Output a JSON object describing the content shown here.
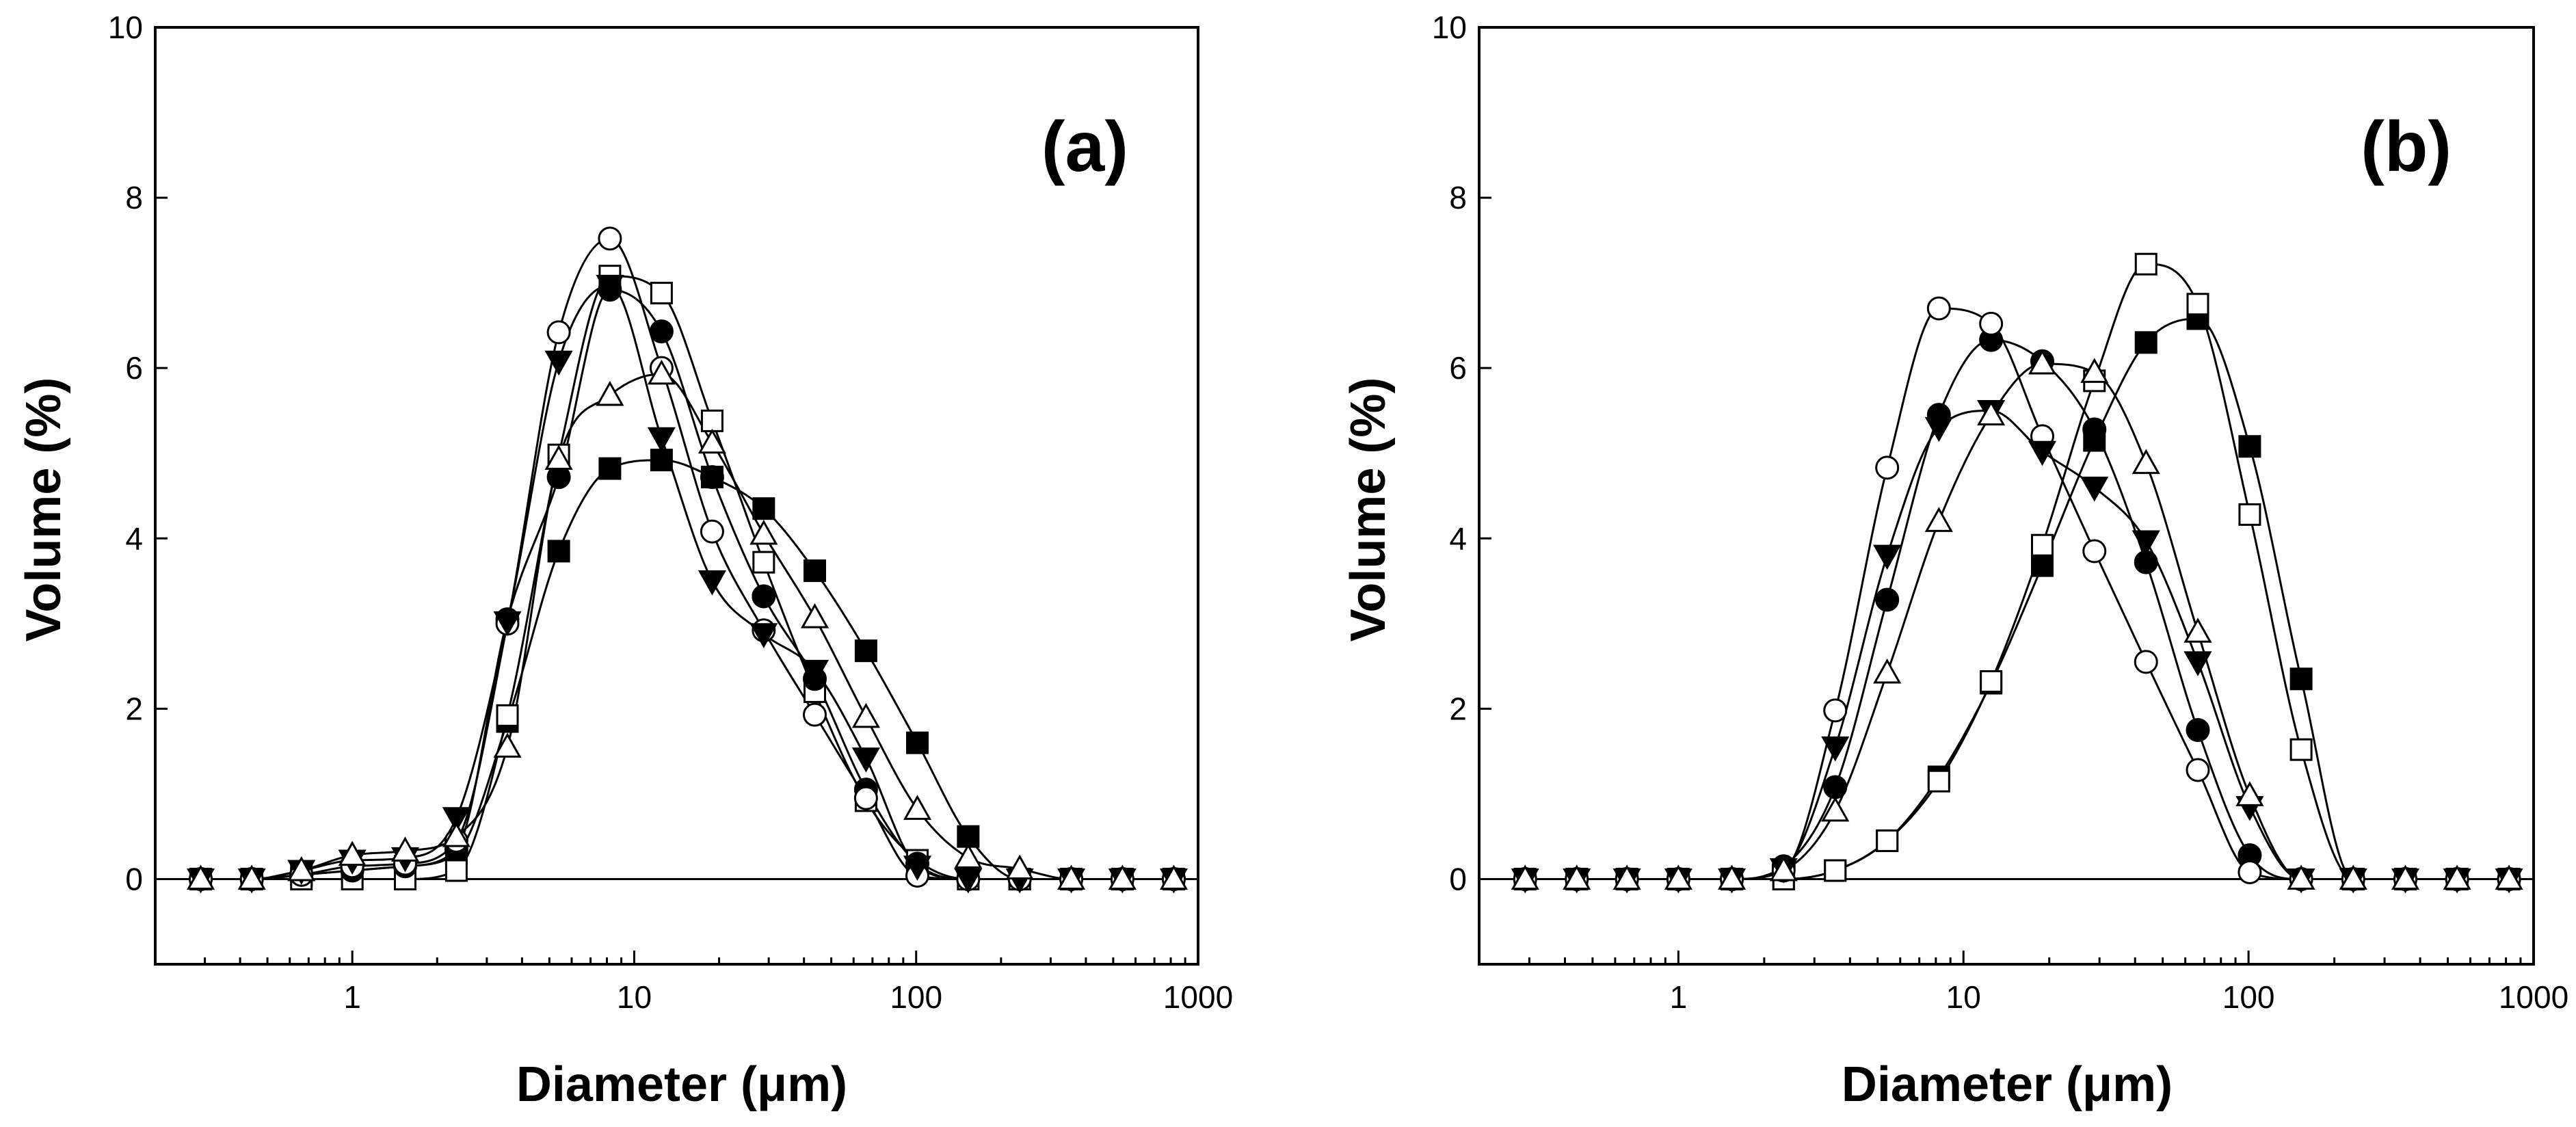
{
  "chart_data": [
    {
      "type": "line",
      "panel_label": "(a)",
      "xlabel": "Diameter (μm)",
      "ylabel": "Volume (%)",
      "xscale": "log",
      "xlim": [
        0.2,
        1000
      ],
      "ylim": [
        -1,
        10
      ],
      "xticks": [
        1,
        10,
        100,
        1000
      ],
      "xtick_labels": [
        "1",
        "10",
        "100",
        "1000"
      ],
      "yticks": [
        0,
        2,
        4,
        6,
        8,
        10
      ],
      "ytick_labels": [
        "0",
        "2",
        "4",
        "6",
        "8",
        "10"
      ],
      "x": [
        0.29,
        0.44,
        0.66,
        1.0,
        1.54,
        2.34,
        3.55,
        5.4,
        8.2,
        12.5,
        18.9,
        28.8,
        43.7,
        66.4,
        101,
        153,
        233,
        355,
        539,
        820
      ],
      "series": [
        {
          "name": "filled-square",
          "marker": "square",
          "fill": "filled",
          "values": [
            0,
            0,
            0.05,
            0.1,
            0.15,
            0.3,
            1.85,
            3.85,
            4.82,
            4.92,
            4.72,
            4.35,
            3.62,
            2.68,
            1.6,
            0.5,
            0,
            0,
            0,
            0
          ]
        },
        {
          "name": "open-square",
          "marker": "square",
          "fill": "open",
          "values": [
            0,
            0,
            0,
            0,
            0,
            0.1,
            1.92,
            4.98,
            7.08,
            6.88,
            5.38,
            3.72,
            2.2,
            0.92,
            0.22,
            0,
            0,
            0,
            0,
            0
          ]
        },
        {
          "name": "filled-circle",
          "marker": "circle",
          "fill": "filled",
          "values": [
            0,
            0,
            0.05,
            0.1,
            0.15,
            0.35,
            3.05,
            4.72,
            6.92,
            6.43,
            4.72,
            3.32,
            2.35,
            1.05,
            0.18,
            0,
            0,
            0,
            0,
            0
          ]
        },
        {
          "name": "open-circle",
          "marker": "circle",
          "fill": "open",
          "values": [
            0,
            0,
            0.05,
            0.15,
            0.18,
            0.45,
            3.0,
            6.42,
            7.52,
            6.0,
            4.08,
            2.92,
            1.93,
            0.95,
            0.04,
            0,
            0,
            0,
            0,
            0
          ]
        },
        {
          "name": "filled-triangle-down",
          "marker": "triangle-down",
          "fill": "filled",
          "values": [
            0,
            0,
            0.1,
            0.22,
            0.25,
            0.72,
            3.02,
            6.08,
            6.97,
            5.18,
            3.5,
            2.88,
            2.45,
            1.42,
            0.15,
            0,
            0,
            0,
            0,
            0
          ]
        },
        {
          "name": "open-triangle-up",
          "marker": "triangle-up",
          "fill": "open",
          "values": [
            0,
            0,
            0.1,
            0.28,
            0.33,
            0.5,
            1.55,
            4.93,
            5.68,
            5.93,
            5.12,
            4.05,
            3.07,
            1.9,
            0.82,
            0.25,
            0.12,
            0,
            0,
            0
          ]
        }
      ]
    },
    {
      "type": "line",
      "panel_label": "(b)",
      "xlabel": "Diameter (μm)",
      "ylabel": "Volume (%)",
      "xscale": "log",
      "xlim": [
        0.2,
        1000
      ],
      "ylim": [
        -1,
        10
      ],
      "xticks": [
        1,
        10,
        100,
        1000
      ],
      "xtick_labels": [
        "1",
        "10",
        "100",
        "1000"
      ],
      "yticks": [
        0,
        2,
        4,
        6,
        8,
        10
      ],
      "ytick_labels": [
        "0",
        "2",
        "4",
        "6",
        "8",
        "10"
      ],
      "x": [
        0.29,
        0.44,
        0.66,
        1.0,
        1.54,
        2.34,
        3.55,
        5.4,
        8.2,
        12.5,
        18.9,
        28.8,
        43.7,
        66.4,
        101,
        153,
        233,
        355,
        539,
        820
      ],
      "series": [
        {
          "name": "filled-square",
          "marker": "square",
          "fill": "filled",
          "values": [
            0,
            0,
            0,
            0,
            0,
            0,
            0.1,
            0.45,
            1.2,
            2.3,
            3.68,
            5.15,
            6.3,
            6.58,
            5.08,
            2.35,
            0,
            0,
            0,
            0
          ]
        },
        {
          "name": "open-square",
          "marker": "square",
          "fill": "open",
          "values": [
            0,
            0,
            0,
            0,
            0,
            0,
            0.1,
            0.45,
            1.15,
            2.32,
            3.92,
            5.85,
            7.22,
            6.75,
            4.28,
            1.52,
            0,
            0,
            0,
            0
          ]
        },
        {
          "name": "filled-circle",
          "marker": "circle",
          "fill": "filled",
          "values": [
            0,
            0,
            0,
            0,
            0,
            0.15,
            1.08,
            3.28,
            5.45,
            6.33,
            6.08,
            5.28,
            3.72,
            1.75,
            0.28,
            0,
            0,
            0,
            0,
            0
          ]
        },
        {
          "name": "open-circle",
          "marker": "circle",
          "fill": "open",
          "values": [
            0,
            0,
            0,
            0,
            0,
            0.1,
            1.98,
            4.83,
            6.7,
            6.52,
            5.2,
            3.85,
            2.55,
            1.28,
            0.08,
            0,
            0,
            0,
            0,
            0
          ]
        },
        {
          "name": "filled-triangle-down",
          "marker": "triangle-down",
          "fill": "filled",
          "values": [
            0,
            0,
            0,
            0,
            0,
            0.12,
            1.55,
            3.8,
            5.3,
            5.5,
            5.02,
            4.6,
            3.97,
            2.55,
            0.85,
            0,
            0,
            0,
            0,
            0
          ]
        },
        {
          "name": "open-triangle-up",
          "marker": "triangle-up",
          "fill": "open",
          "values": [
            0,
            0,
            0,
            0,
            0,
            0.1,
            0.8,
            2.42,
            4.2,
            5.45,
            6.05,
            5.95,
            4.88,
            2.9,
            0.98,
            0,
            0,
            0,
            0,
            0
          ]
        }
      ]
    }
  ]
}
